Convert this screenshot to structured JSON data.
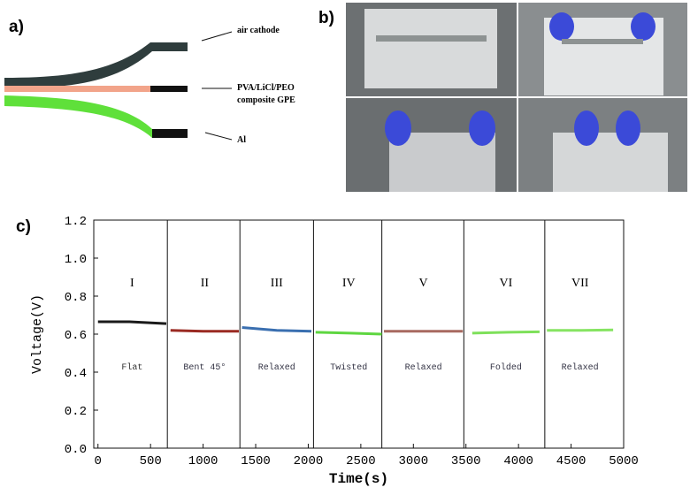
{
  "panels": {
    "a": {
      "label": "a)",
      "layers": [
        "air cathode",
        "PVA/LiCl/PEO",
        "composite GPE",
        "Al"
      ]
    },
    "b": {
      "label": "b)"
    },
    "c": {
      "label": "c)"
    }
  },
  "chart_data": {
    "type": "line",
    "x_label": "Time(s)",
    "y_label": "Voltage(V)",
    "xlim": [
      -40,
      5000
    ],
    "ylim": [
      0,
      1.2
    ],
    "xticks": [
      0,
      500,
      1000,
      1500,
      2000,
      2500,
      3000,
      3500,
      4000,
      4500,
      5000
    ],
    "yticks": [
      {
        "value": 0,
        "label": "0.0"
      },
      0.2,
      0.4,
      0.6,
      0.8,
      {
        "value": 1,
        "label": "1.0"
      },
      1.2
    ],
    "boundaries": [
      660,
      1350,
      2050,
      2700,
      3480,
      4250
    ],
    "series": [
      {
        "name": "I",
        "condition": "Flat",
        "color": "#1a1a1a",
        "x": [
          0,
          300,
          650
        ],
        "values": [
          0.665,
          0.665,
          0.655
        ]
      },
      {
        "name": "II",
        "condition": "Bent 45°",
        "color": "#9a2a22",
        "x": [
          690,
          1000,
          1340
        ],
        "values": [
          0.62,
          0.615,
          0.615
        ]
      },
      {
        "name": "III",
        "condition": "Relaxed",
        "color": "#3a6fb0",
        "x": [
          1370,
          1700,
          2030
        ],
        "values": [
          0.635,
          0.62,
          0.615
        ]
      },
      {
        "name": "IV",
        "condition": "Twisted",
        "color": "#5ed640",
        "x": [
          2070,
          2400,
          2700
        ],
        "values": [
          0.61,
          0.605,
          0.6
        ]
      },
      {
        "name": "V",
        "condition": "Relaxed",
        "color": "#a86a60",
        "x": [
          2720,
          3100,
          3470
        ],
        "values": [
          0.615,
          0.615,
          0.615
        ]
      },
      {
        "name": "VI",
        "condition": "Folded",
        "color": "#7ee05a",
        "x": [
          3560,
          3900,
          4200
        ],
        "values": [
          0.605,
          0.61,
          0.612
        ]
      },
      {
        "name": "VII",
        "condition": "Relaxed",
        "color": "#86e462",
        "x": [
          4270,
          4600,
          4900
        ],
        "values": [
          0.62,
          0.62,
          0.622
        ]
      }
    ]
  }
}
